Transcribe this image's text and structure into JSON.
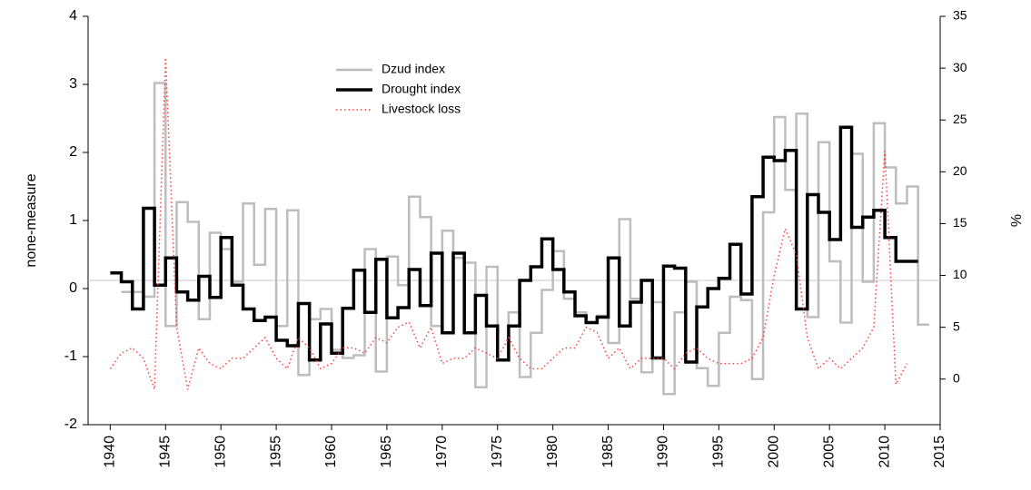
{
  "chart_data": {
    "type": "step",
    "y_label": "none-measure",
    "y2_label": "%",
    "xlim": [
      1938,
      2015
    ],
    "xticks": [
      1940,
      1945,
      1950,
      1955,
      1960,
      1965,
      1970,
      1975,
      1980,
      1985,
      1990,
      1995,
      2000,
      2005,
      2010,
      2015
    ],
    "ylim": [
      -2,
      4
    ],
    "yticks": [
      -2,
      -1,
      0,
      1,
      2,
      3,
      4
    ],
    "y2lim": [
      -4.4,
      35
    ],
    "y2ticks": [
      0,
      5,
      10,
      15,
      20,
      25,
      30,
      35
    ],
    "reference_line": 0.12,
    "series": [
      {
        "name": "Dzud index",
        "color": "#bdbdbd",
        "style": "step",
        "x": [
          1941,
          1942,
          1943,
          1944,
          1945,
          1946,
          1947,
          1948,
          1949,
          1950,
          1951,
          1952,
          1953,
          1954,
          1955,
          1956,
          1957,
          1958,
          1959,
          1960,
          1961,
          1962,
          1963,
          1964,
          1965,
          1966,
          1967,
          1968,
          1969,
          1970,
          1971,
          1972,
          1973,
          1974,
          1975,
          1976,
          1977,
          1978,
          1979,
          1980,
          1981,
          1982,
          1983,
          1984,
          1985,
          1986,
          1987,
          1988,
          1989,
          1990,
          1991,
          1992,
          1993,
          1994,
          1995,
          1996,
          1997,
          1998,
          1999,
          2000,
          2001,
          2002,
          2003,
          2004,
          2005,
          2006,
          2007,
          2008,
          2009,
          2010,
          2011,
          2012,
          2013
        ],
        "values": [
          -0.05,
          -0.05,
          -0.12,
          3.02,
          -0.55,
          1.27,
          0.98,
          -0.45,
          0.82,
          0.58,
          0.1,
          1.25,
          0.35,
          1.17,
          -0.55,
          1.15,
          -1.27,
          -0.45,
          -0.3,
          -0.9,
          -1.02,
          -0.98,
          0.58,
          -1.22,
          0.47,
          0.05,
          1.35,
          1.05,
          -0.55,
          0.85,
          0.45,
          0.38,
          -1.45,
          0.32,
          -1.05,
          -0.35,
          -1.3,
          -0.65,
          -0.02,
          0.55,
          -0.15,
          -0.35,
          -0.5,
          -0.4,
          -0.8,
          1.02,
          -0.15,
          -1.23,
          -0.2,
          -1.55,
          -0.35,
          0.1,
          -1.17,
          -1.43,
          -0.65,
          -0.12,
          -0.17,
          -1.33,
          1.12,
          2.52,
          1.45,
          2.57,
          -0.42,
          2.15,
          0.4,
          -0.5,
          1.98,
          0.1,
          2.43,
          1.78,
          1.25,
          1.5,
          -0.53
        ]
      },
      {
        "name": "Drought index",
        "color": "#000000",
        "style": "step",
        "x": [
          1940,
          1941,
          1942,
          1943,
          1944,
          1945,
          1946,
          1947,
          1948,
          1949,
          1950,
          1951,
          1952,
          1953,
          1954,
          1955,
          1956,
          1957,
          1958,
          1959,
          1960,
          1961,
          1962,
          1963,
          1964,
          1965,
          1966,
          1967,
          1968,
          1969,
          1970,
          1971,
          1972,
          1973,
          1974,
          1975,
          1976,
          1977,
          1978,
          1979,
          1980,
          1981,
          1982,
          1983,
          1984,
          1985,
          1986,
          1987,
          1988,
          1989,
          1990,
          1991,
          1992,
          1993,
          1994,
          1995,
          1996,
          1997,
          1998,
          1999,
          2000,
          2001,
          2002,
          2003,
          2004,
          2005,
          2006,
          2007,
          2008,
          2009,
          2010,
          2011,
          2012
        ],
        "values": [
          0.23,
          0.1,
          -0.3,
          1.18,
          0.05,
          0.45,
          -0.05,
          -0.17,
          0.18,
          -0.13,
          0.75,
          0.05,
          -0.3,
          -0.47,
          -0.42,
          -0.76,
          -0.84,
          -0.22,
          -1.05,
          -0.52,
          -0.95,
          -0.29,
          0.27,
          -0.35,
          0.43,
          -0.43,
          -0.28,
          0.28,
          -0.25,
          0.52,
          -0.65,
          0.52,
          -0.65,
          -0.1,
          -0.55,
          -1.05,
          -0.55,
          0.12,
          0.32,
          0.73,
          0.28,
          -0.05,
          -0.4,
          -0.5,
          -0.42,
          0.45,
          -0.55,
          -0.2,
          0.12,
          -1.02,
          0.33,
          0.3,
          -1.08,
          -0.27,
          0.0,
          0.15,
          0.65,
          -0.08,
          1.35,
          1.93,
          1.88,
          2.03,
          -0.3,
          1.38,
          1.12,
          0.72,
          2.37,
          0.9,
          1.05,
          1.15,
          0.75,
          0.4,
          0.4
        ]
      },
      {
        "name": "Livestock loss",
        "color": "#ff4040",
        "style": "dotted",
        "axis": "y2",
        "x": [
          1940,
          1941,
          1942,
          1943,
          1944,
          1945,
          1946,
          1947,
          1948,
          1949,
          1950,
          1951,
          1952,
          1953,
          1954,
          1955,
          1956,
          1957,
          1958,
          1959,
          1960,
          1961,
          1962,
          1963,
          1964,
          1965,
          1966,
          1967,
          1968,
          1969,
          1970,
          1971,
          1972,
          1973,
          1974,
          1975,
          1976,
          1977,
          1978,
          1979,
          1980,
          1981,
          1982,
          1983,
          1984,
          1985,
          1986,
          1987,
          1988,
          1989,
          1990,
          1991,
          1992,
          1993,
          1994,
          1995,
          1996,
          1997,
          1998,
          1999,
          2000,
          2001,
          2002,
          2003,
          2004,
          2005,
          2006,
          2007,
          2008,
          2009,
          2010,
          2011,
          2012
        ],
        "values": [
          1,
          2.5,
          3,
          2,
          -1,
          31,
          5,
          -1,
          3,
          1.5,
          1,
          2,
          2,
          3,
          4,
          2,
          1,
          4,
          3,
          1,
          1.5,
          3,
          3,
          2.5,
          4,
          3.5,
          5,
          5.5,
          3,
          5,
          1.5,
          2,
          2,
          3,
          2.5,
          2,
          4,
          2,
          1,
          1,
          2,
          3,
          3,
          5,
          4.5,
          2,
          3,
          1,
          2,
          2,
          2,
          1,
          2.5,
          3,
          2,
          1.5,
          1.5,
          1.5,
          2,
          4,
          10,
          14.5,
          12,
          4,
          1,
          2,
          1,
          2,
          3,
          5,
          22,
          -0.5,
          1.5
        ]
      }
    ]
  }
}
